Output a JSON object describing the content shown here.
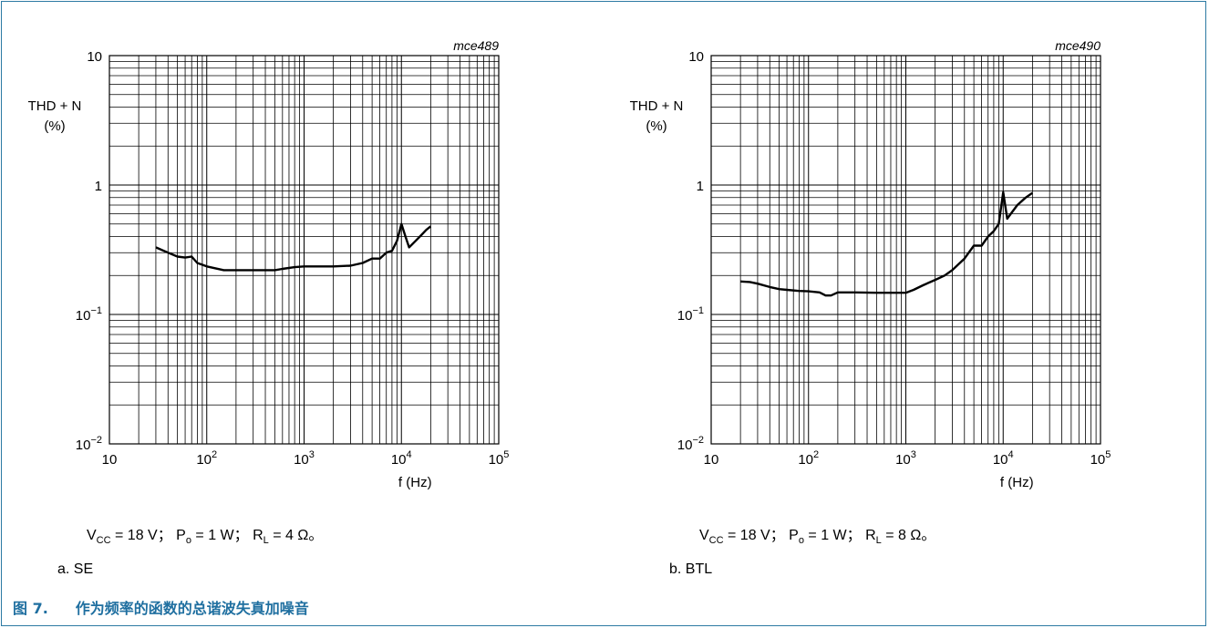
{
  "chart_data": [
    {
      "type": "line",
      "id_label": "mce489",
      "ylabel": [
        "THD + N",
        "(%)"
      ],
      "xlabel": "f (Hz)",
      "xscale": "log",
      "yscale": "log",
      "xlim": [
        10,
        100000
      ],
      "ylim": [
        0.01,
        10
      ],
      "grid": true,
      "xticks": [
        [
          "10",
          ""
        ],
        [
          "10",
          "2"
        ],
        [
          "10",
          "3"
        ],
        [
          "10",
          "4"
        ],
        [
          "10",
          "5"
        ]
      ],
      "yticks": [
        [
          "10",
          ""
        ],
        [
          "1",
          ""
        ],
        [
          "10",
          "−1"
        ],
        [
          "10",
          "−2"
        ]
      ],
      "series": [
        {
          "x": [
            30,
            40,
            50,
            60,
            70,
            80,
            100,
            150,
            200,
            300,
            400,
            500,
            600,
            800,
            1000,
            1500,
            2000,
            3000,
            4000,
            5000,
            6000,
            7000,
            8000,
            9000,
            10000,
            11000,
            12000,
            14000,
            16000,
            18000,
            20000
          ],
          "y": [
            0.33,
            0.3,
            0.28,
            0.275,
            0.28,
            0.25,
            0.235,
            0.22,
            0.22,
            0.22,
            0.22,
            0.22,
            0.225,
            0.232,
            0.235,
            0.235,
            0.235,
            0.238,
            0.25,
            0.27,
            0.27,
            0.3,
            0.31,
            0.37,
            0.5,
            0.4,
            0.33,
            0.37,
            0.41,
            0.45,
            0.48
          ]
        }
      ]
    },
    {
      "type": "line",
      "id_label": "mce490",
      "ylabel": [
        "THD + N",
        "(%)"
      ],
      "xlabel": "f (Hz)",
      "xscale": "log",
      "yscale": "log",
      "xlim": [
        10,
        100000
      ],
      "ylim": [
        0.01,
        10
      ],
      "grid": true,
      "xticks": [
        [
          "10",
          ""
        ],
        [
          "10",
          "2"
        ],
        [
          "10",
          "3"
        ],
        [
          "10",
          "4"
        ],
        [
          "10",
          "5"
        ]
      ],
      "yticks": [
        [
          "10",
          ""
        ],
        [
          "1",
          ""
        ],
        [
          "10",
          "−1"
        ],
        [
          "10",
          "−2"
        ]
      ],
      "series": [
        {
          "x": [
            20,
            25,
            30,
            40,
            50,
            60,
            80,
            100,
            130,
            150,
            170,
            200,
            300,
            500,
            700,
            1000,
            1200,
            1500,
            2000,
            2500,
            3000,
            4000,
            5000,
            6000,
            7000,
            8000,
            9000,
            10000,
            11000,
            12000,
            14000,
            17000,
            20000
          ],
          "y": [
            0.18,
            0.178,
            0.173,
            0.163,
            0.157,
            0.155,
            0.152,
            0.151,
            0.148,
            0.14,
            0.14,
            0.148,
            0.148,
            0.147,
            0.147,
            0.147,
            0.155,
            0.168,
            0.185,
            0.2,
            0.22,
            0.27,
            0.34,
            0.34,
            0.4,
            0.44,
            0.5,
            0.88,
            0.55,
            0.6,
            0.7,
            0.8,
            0.87
          ]
        }
      ]
    }
  ],
  "conditions": [
    {
      "vcc_main": "V",
      "vcc_sub": "CC",
      "vcc_rest": " = 18 V；  P",
      "po_sub": "o",
      "po_rest": " = 1 W；  R",
      "rl_sub": "L",
      "rl_rest": " = 4 Ω。"
    },
    {
      "vcc_main": "V",
      "vcc_sub": "CC",
      "vcc_rest": " = 18 V；  P",
      "po_sub": "o",
      "po_rest": " = 1 W；  R",
      "rl_sub": "L",
      "rl_rest": " = 8 Ω。"
    }
  ],
  "sublabels": [
    "a.   SE",
    "b.   BTL"
  ],
  "figure": {
    "number": "图 7.",
    "title": "作为频率的函数的总谐波失真加噪音"
  },
  "colors": {
    "caption": "#1f6fa0",
    "frame_border": "#2d7aa3",
    "line": "#000000",
    "grid": "#000000"
  }
}
